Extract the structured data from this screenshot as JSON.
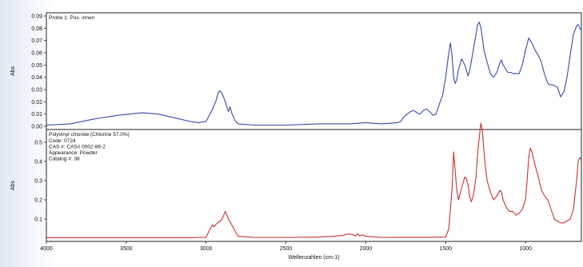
{
  "header": {
    "top_title": ""
  },
  "colors": {
    "top_series": "#3a4aa8",
    "bottom_series": "#c83232",
    "frame": "#222222",
    "grid": "#cccccc"
  },
  "chart_data": [
    {
      "type": "line",
      "panel": "top",
      "title": "Probe 1: Pos. innen",
      "annotations": [],
      "xlabel": "",
      "ylabel": "Abs",
      "xlim": [
        4000,
        650
      ],
      "ylim": [
        0,
        0.09
      ],
      "yticks": [
        "0.00",
        "0.01",
        "0.02",
        "0.03",
        "0.04",
        "0.05",
        "0.06",
        "0.07",
        "0.08",
        "0.09"
      ],
      "series": [
        {
          "x": [
            4000,
            3850,
            3700,
            3550,
            3400,
            3300,
            3200,
            3100,
            3050,
            3000,
            2960,
            2940,
            2925,
            2915,
            2900,
            2880,
            2860,
            2850,
            2840,
            2820,
            2800,
            2700,
            2500,
            2300,
            2100,
            2000,
            1900,
            1800,
            1780,
            1760,
            1740,
            1720,
            1700,
            1680,
            1660,
            1640,
            1620,
            1600,
            1580,
            1560,
            1540,
            1520,
            1500,
            1480,
            1470,
            1460,
            1450,
            1440,
            1430,
            1420,
            1400,
            1380,
            1370,
            1360,
            1350,
            1330,
            1310,
            1300,
            1290,
            1280,
            1270,
            1260,
            1240,
            1220,
            1200,
            1180,
            1160,
            1150,
            1140,
            1120,
            1110,
            1100,
            1090,
            1080,
            1060,
            1040,
            1020,
            1000,
            980,
            960,
            940,
            920,
            900,
            880,
            860,
            850,
            840,
            830,
            820,
            800,
            780,
            760,
            740,
            720,
            700,
            680,
            670,
            660,
            650
          ],
          "y": [
            0.001,
            0.002,
            0.006,
            0.009,
            0.011,
            0.01,
            0.007,
            0.004,
            0.003,
            0.004,
            0.014,
            0.02,
            0.027,
            0.029,
            0.027,
            0.02,
            0.012,
            0.016,
            0.011,
            0.005,
            0.002,
            0.001,
            0.001,
            0.002,
            0.002,
            0.003,
            0.002,
            0.003,
            0.004,
            0.008,
            0.01,
            0.012,
            0.013,
            0.011,
            0.01,
            0.013,
            0.014,
            0.012,
            0.009,
            0.01,
            0.018,
            0.025,
            0.04,
            0.06,
            0.068,
            0.058,
            0.04,
            0.035,
            0.038,
            0.046,
            0.055,
            0.05,
            0.046,
            0.041,
            0.045,
            0.06,
            0.075,
            0.083,
            0.085,
            0.081,
            0.072,
            0.062,
            0.052,
            0.043,
            0.04,
            0.044,
            0.052,
            0.054,
            0.05,
            0.046,
            0.044,
            0.044,
            0.044,
            0.043,
            0.043,
            0.043,
            0.05,
            0.062,
            0.072,
            0.068,
            0.062,
            0.058,
            0.052,
            0.042,
            0.035,
            0.034,
            0.034,
            0.034,
            0.033,
            0.032,
            0.024,
            0.028,
            0.04,
            0.058,
            0.075,
            0.082,
            0.083,
            0.08,
            0.078
          ]
        }
      ]
    },
    {
      "type": "line",
      "panel": "bottom",
      "title": "Polyvinyl chloride (Chlorine 57.0%)",
      "annotations": [
        "Code: 0724",
        "CAS #: CAS# 0002-86-2",
        "Appearance: Powder",
        "Catalog #: 38"
      ],
      "xlabel": "Wellenzahlen (cm-1)",
      "ylabel": "Abs",
      "xlim": [
        4000,
        650
      ],
      "ylim": [
        0,
        0.55
      ],
      "yticks": [
        "0.1",
        "0.2",
        "0.3",
        "0.4",
        "0.5"
      ],
      "xticks": [
        "4000",
        "3500",
        "3000",
        "2500",
        "2000",
        "1500",
        "1000"
      ],
      "series": [
        {
          "x": [
            4000,
            3700,
            3400,
            3100,
            3000,
            2980,
            2960,
            2950,
            2940,
            2930,
            2920,
            2910,
            2900,
            2890,
            2880,
            2860,
            2840,
            2820,
            2800,
            2700,
            2500,
            2300,
            2200,
            2150,
            2120,
            2100,
            2080,
            2060,
            2050,
            2040,
            2020,
            2000,
            1900,
            1800,
            1600,
            1500,
            1480,
            1460,
            1450,
            1440,
            1430,
            1420,
            1400,
            1380,
            1370,
            1360,
            1350,
            1340,
            1330,
            1320,
            1310,
            1300,
            1290,
            1280,
            1270,
            1260,
            1250,
            1240,
            1220,
            1200,
            1180,
            1160,
            1150,
            1140,
            1120,
            1100,
            1080,
            1060,
            1040,
            1020,
            1000,
            990,
            980,
            970,
            960,
            940,
            920,
            900,
            880,
            860,
            840,
            820,
            800,
            780,
            760,
            740,
            720,
            700,
            680,
            670,
            660,
            650
          ],
          "y": [
            0.003,
            0.003,
            0.003,
            0.003,
            0.005,
            0.04,
            0.07,
            0.06,
            0.07,
            0.08,
            0.085,
            0.09,
            0.1,
            0.12,
            0.14,
            0.1,
            0.07,
            0.04,
            0.01,
            0.004,
            0.004,
            0.006,
            0.01,
            0.014,
            0.02,
            0.022,
            0.018,
            0.012,
            0.024,
            0.012,
            0.018,
            0.01,
            0.004,
            0.005,
            0.005,
            0.006,
            0.05,
            0.25,
            0.45,
            0.35,
            0.25,
            0.2,
            0.26,
            0.32,
            0.31,
            0.28,
            0.22,
            0.19,
            0.21,
            0.26,
            0.32,
            0.44,
            0.52,
            0.6,
            0.56,
            0.45,
            0.36,
            0.3,
            0.24,
            0.2,
            0.22,
            0.25,
            0.24,
            0.2,
            0.16,
            0.14,
            0.14,
            0.12,
            0.13,
            0.15,
            0.2,
            0.3,
            0.42,
            0.47,
            0.45,
            0.38,
            0.32,
            0.25,
            0.22,
            0.2,
            0.15,
            0.1,
            0.09,
            0.08,
            0.08,
            0.09,
            0.1,
            0.15,
            0.3,
            0.4,
            0.42,
            0.41
          ]
        }
      ]
    }
  ]
}
